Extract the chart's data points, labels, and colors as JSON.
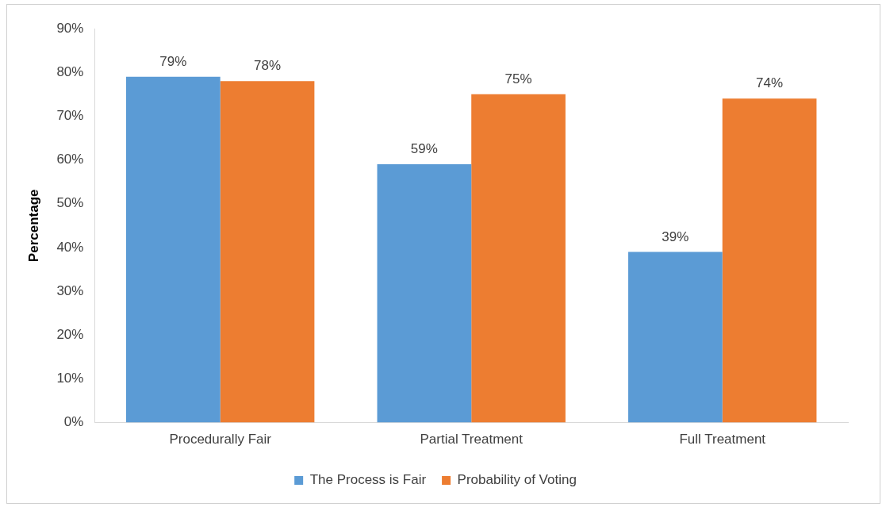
{
  "chart_data": {
    "type": "bar",
    "ylabel": "Percentage",
    "categories": [
      "Procedurally Fair",
      "Partial Treatment",
      "Full Treatment"
    ],
    "series": [
      {
        "name": "The Process is Fair",
        "color": "#5b9bd5",
        "values": [
          79,
          59,
          39
        ],
        "value_labels": [
          "79%",
          "59%",
          "39%"
        ]
      },
      {
        "name": "Probability of Voting",
        "color": "#ed7d31",
        "values": [
          78,
          75,
          74
        ],
        "value_labels": [
          "78%",
          "75%",
          "74%"
        ]
      }
    ],
    "ylim": [
      0,
      90
    ],
    "yticks": [
      {
        "value": 0,
        "label": "0%"
      },
      {
        "value": 10,
        "label": "10%"
      },
      {
        "value": 20,
        "label": "20%"
      },
      {
        "value": 30,
        "label": "30%"
      },
      {
        "value": 40,
        "label": "40%"
      },
      {
        "value": 50,
        "label": "50%"
      },
      {
        "value": 60,
        "label": "60%"
      },
      {
        "value": 70,
        "label": "70%"
      },
      {
        "value": 80,
        "label": "80%"
      },
      {
        "value": 90,
        "label": "90%"
      }
    ],
    "grid": false,
    "legend": "bottom"
  }
}
